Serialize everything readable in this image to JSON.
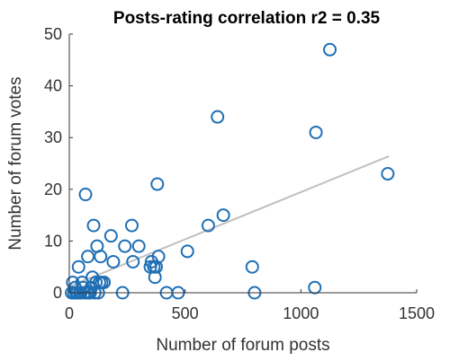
{
  "chart_data": {
    "type": "scatter",
    "title": "Posts-rating correlation r2 = 0.35",
    "xlabel": "Number of forum posts",
    "ylabel": "Number of forum votes",
    "xlim": [
      0,
      1500
    ],
    "ylim": [
      0,
      50
    ],
    "x_ticks": [
      0,
      500,
      1000,
      1500
    ],
    "y_ticks": [
      0,
      10,
      20,
      30,
      40,
      50
    ],
    "grid": false,
    "legend": "none",
    "colors": {
      "marker": "#1f6fb5",
      "fit_line": "#c0c0c0",
      "axis": "#333333"
    },
    "series": [
      {
        "points": [
          [
            10,
            0
          ],
          [
            15,
            2
          ],
          [
            20,
            0
          ],
          [
            25,
            1
          ],
          [
            30,
            0
          ],
          [
            35,
            0
          ],
          [
            40,
            5
          ],
          [
            45,
            0
          ],
          [
            50,
            0
          ],
          [
            55,
            2
          ],
          [
            60,
            1
          ],
          [
            65,
            0
          ],
          [
            70,
            19
          ],
          [
            75,
            0
          ],
          [
            80,
            7
          ],
          [
            85,
            0
          ],
          [
            90,
            0
          ],
          [
            95,
            1
          ],
          [
            100,
            3
          ],
          [
            105,
            13
          ],
          [
            110,
            0
          ],
          [
            115,
            2
          ],
          [
            120,
            9
          ],
          [
            125,
            0
          ],
          [
            130,
            2
          ],
          [
            135,
            7
          ],
          [
            140,
            2
          ],
          [
            150,
            2
          ],
          [
            180,
            11
          ],
          [
            190,
            6
          ],
          [
            230,
            0
          ],
          [
            240,
            9
          ],
          [
            270,
            13
          ],
          [
            275,
            6
          ],
          [
            300,
            9
          ],
          [
            350,
            5
          ],
          [
            355,
            6
          ],
          [
            365,
            5
          ],
          [
            370,
            3
          ],
          [
            375,
            5
          ],
          [
            380,
            21
          ],
          [
            385,
            7
          ],
          [
            420,
            0
          ],
          [
            470,
            0
          ],
          [
            510,
            8
          ],
          [
            600,
            13
          ],
          [
            640,
            34
          ],
          [
            665,
            15
          ],
          [
            790,
            5
          ],
          [
            800,
            0
          ],
          [
            1060,
            1
          ],
          [
            1065,
            31
          ],
          [
            1125,
            47
          ],
          [
            1375,
            23
          ]
        ]
      }
    ],
    "fit_line": {
      "x": [
        0,
        1380
      ],
      "y": [
        1.2,
        26.4
      ]
    }
  }
}
